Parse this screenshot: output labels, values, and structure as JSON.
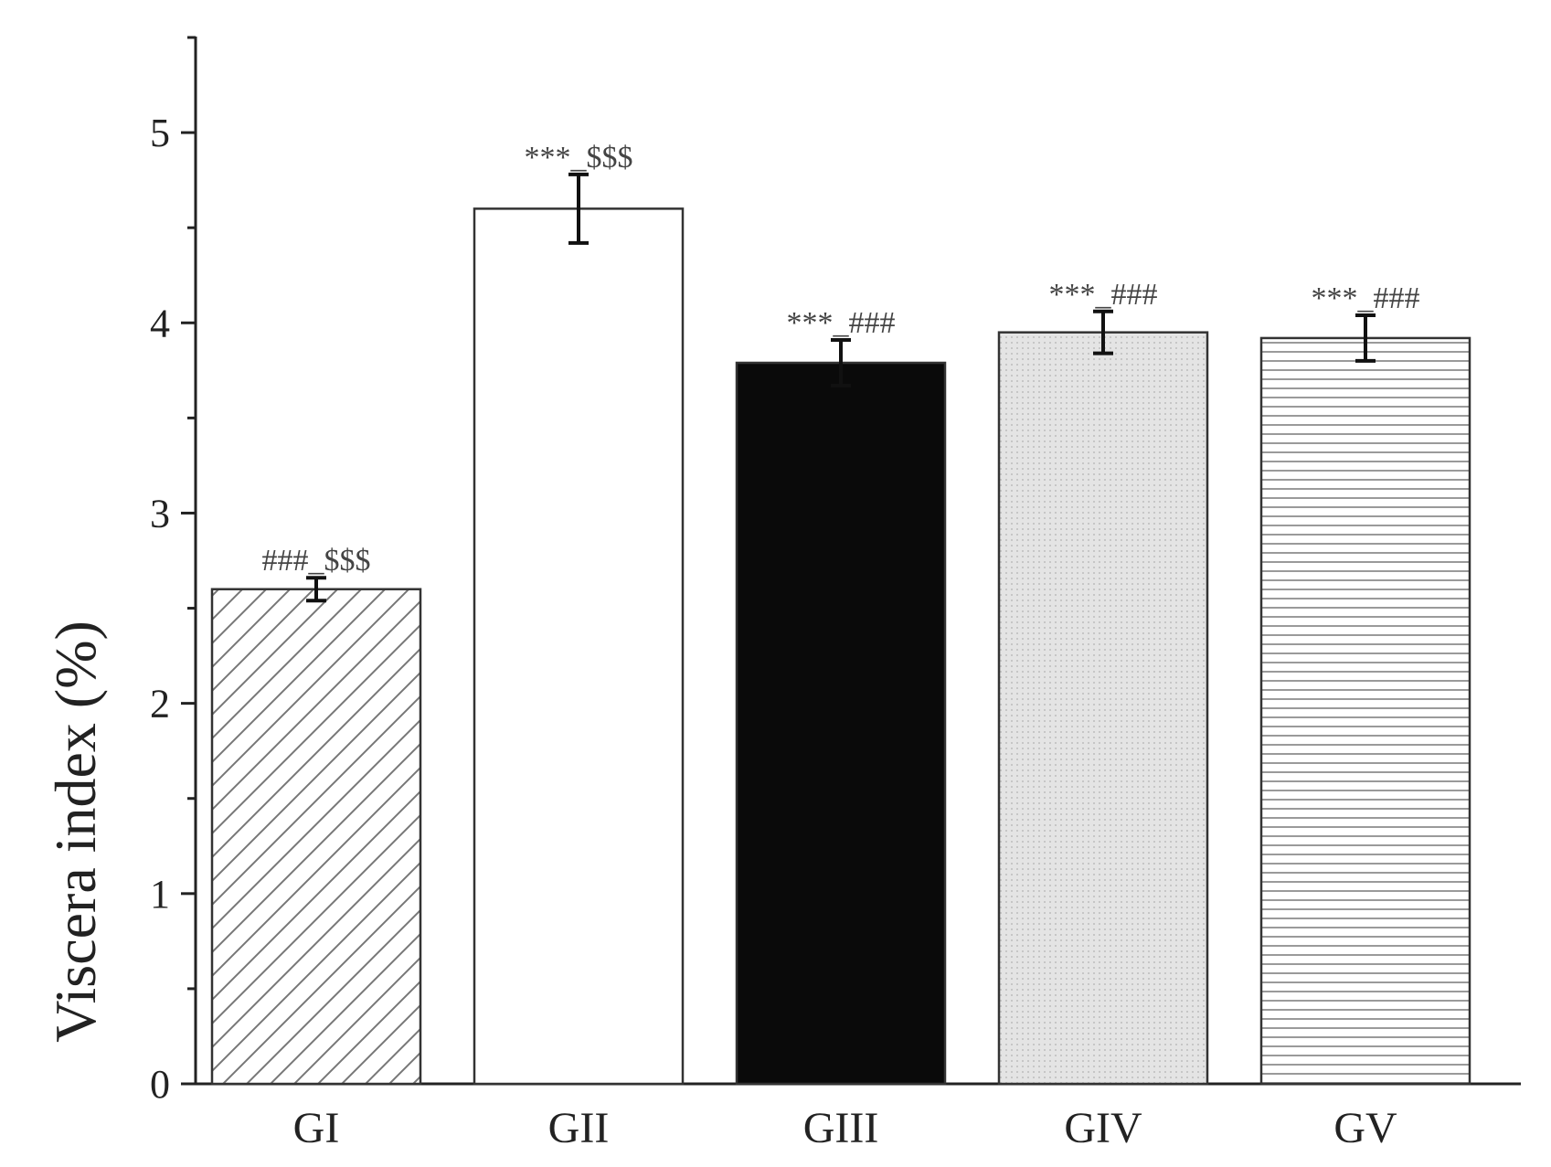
{
  "chart_data": {
    "type": "bar",
    "title": "",
    "xlabel": "",
    "ylabel": "Viscera index (%)",
    "ylim": [
      0,
      5.5
    ],
    "yticks": [
      0,
      1,
      2,
      3,
      4,
      5
    ],
    "categories": [
      "GI",
      "GII",
      "GIII",
      "GIV",
      "GV"
    ],
    "values": [
      2.6,
      4.6,
      3.79,
      3.95,
      3.92
    ],
    "errors": [
      0.06,
      0.18,
      0.12,
      0.11,
      0.12
    ],
    "annotations": [
      "###_$$$",
      "***_$$$",
      "***_###",
      "***_###",
      "***_###"
    ],
    "fill_styles": [
      "diagonal-hatch",
      "white",
      "black",
      "light-gray-dots",
      "horizontal-lines"
    ],
    "grid": false,
    "legend": "none"
  }
}
